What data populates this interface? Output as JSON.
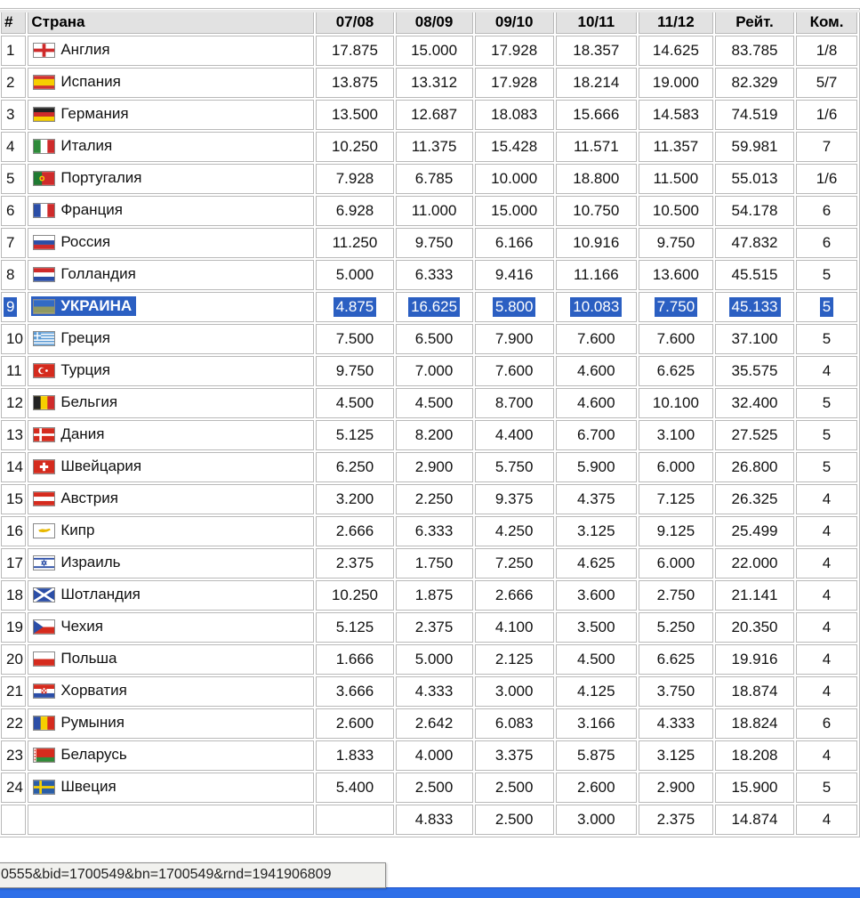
{
  "colors": {
    "sel": "#2b5fc2",
    "bar": "#2e6fe8",
    "header_bg": "#e2e2e2"
  },
  "table": {
    "headers": [
      "#",
      "Страна",
      "07/08",
      "08/09",
      "09/10",
      "10/11",
      "11/12",
      "Рейт.",
      "Ком."
    ],
    "rows": [
      {
        "rank": "1",
        "country": "Англия",
        "flag": "england",
        "values": [
          "17.875",
          "15.000",
          "17.928",
          "18.357",
          "14.625"
        ],
        "rating": "83.785",
        "teams": "1/8",
        "selected": false
      },
      {
        "rank": "2",
        "country": "Испания",
        "flag": "spain",
        "values": [
          "13.875",
          "13.312",
          "17.928",
          "18.214",
          "19.000"
        ],
        "rating": "82.329",
        "teams": "5/7",
        "selected": false
      },
      {
        "rank": "3",
        "country": "Германия",
        "flag": "germany",
        "values": [
          "13.500",
          "12.687",
          "18.083",
          "15.666",
          "14.583"
        ],
        "rating": "74.519",
        "teams": "1/6",
        "selected": false
      },
      {
        "rank": "4",
        "country": "Италия",
        "flag": "italy",
        "values": [
          "10.250",
          "11.375",
          "15.428",
          "11.571",
          "11.357"
        ],
        "rating": "59.981",
        "teams": "7",
        "selected": false
      },
      {
        "rank": "5",
        "country": "Португалия",
        "flag": "portugal",
        "values": [
          "7.928",
          "6.785",
          "10.000",
          "18.800",
          "11.500"
        ],
        "rating": "55.013",
        "teams": "1/6",
        "selected": false
      },
      {
        "rank": "6",
        "country": "Франция",
        "flag": "france",
        "values": [
          "6.928",
          "11.000",
          "15.000",
          "10.750",
          "10.500"
        ],
        "rating": "54.178",
        "teams": "6",
        "selected": false
      },
      {
        "rank": "7",
        "country": "Россия",
        "flag": "russia",
        "values": [
          "11.250",
          "9.750",
          "6.166",
          "10.916",
          "9.750"
        ],
        "rating": "47.832",
        "teams": "6",
        "selected": false
      },
      {
        "rank": "8",
        "country": "Голландия",
        "flag": "netherlands",
        "values": [
          "5.000",
          "6.333",
          "9.416",
          "11.166",
          "13.600"
        ],
        "rating": "45.515",
        "teams": "5",
        "selected": false
      },
      {
        "rank": "9",
        "country": "УКРАИНА",
        "flag": "ukraine",
        "values": [
          "4.875",
          "16.625",
          "5.800",
          "10.083",
          "7.750"
        ],
        "rating": "45.133",
        "teams": "5",
        "selected": true
      },
      {
        "rank": "10",
        "country": "Греция",
        "flag": "greece",
        "values": [
          "7.500",
          "6.500",
          "7.900",
          "7.600",
          "7.600"
        ],
        "rating": "37.100",
        "teams": "5",
        "selected": false
      },
      {
        "rank": "11",
        "country": "Турция",
        "flag": "turkey",
        "values": [
          "9.750",
          "7.000",
          "7.600",
          "4.600",
          "6.625"
        ],
        "rating": "35.575",
        "teams": "4",
        "selected": false
      },
      {
        "rank": "12",
        "country": "Бельгия",
        "flag": "belgium",
        "values": [
          "4.500",
          "4.500",
          "8.700",
          "4.600",
          "10.100"
        ],
        "rating": "32.400",
        "teams": "5",
        "selected": false
      },
      {
        "rank": "13",
        "country": "Дания",
        "flag": "denmark",
        "values": [
          "5.125",
          "8.200",
          "4.400",
          "6.700",
          "3.100"
        ],
        "rating": "27.525",
        "teams": "5",
        "selected": false
      },
      {
        "rank": "14",
        "country": "Швейцария",
        "flag": "switzerland",
        "values": [
          "6.250",
          "2.900",
          "5.750",
          "5.900",
          "6.000"
        ],
        "rating": "26.800",
        "teams": "5",
        "selected": false
      },
      {
        "rank": "15",
        "country": "Австрия",
        "flag": "austria",
        "values": [
          "3.200",
          "2.250",
          "9.375",
          "4.375",
          "7.125"
        ],
        "rating": "26.325",
        "teams": "4",
        "selected": false
      },
      {
        "rank": "16",
        "country": "Кипр",
        "flag": "cyprus",
        "values": [
          "2.666",
          "6.333",
          "4.250",
          "3.125",
          "9.125"
        ],
        "rating": "25.499",
        "teams": "4",
        "selected": false
      },
      {
        "rank": "17",
        "country": "Израиль",
        "flag": "israel",
        "values": [
          "2.375",
          "1.750",
          "7.250",
          "4.625",
          "6.000"
        ],
        "rating": "22.000",
        "teams": "4",
        "selected": false
      },
      {
        "rank": "18",
        "country": "Шотландия",
        "flag": "scotland",
        "values": [
          "10.250",
          "1.875",
          "2.666",
          "3.600",
          "2.750"
        ],
        "rating": "21.141",
        "teams": "4",
        "selected": false
      },
      {
        "rank": "19",
        "country": "Чехия",
        "flag": "czech",
        "values": [
          "5.125",
          "2.375",
          "4.100",
          "3.500",
          "5.250"
        ],
        "rating": "20.350",
        "teams": "4",
        "selected": false
      },
      {
        "rank": "20",
        "country": "Польша",
        "flag": "poland",
        "values": [
          "1.666",
          "5.000",
          "2.125",
          "4.500",
          "6.625"
        ],
        "rating": "19.916",
        "teams": "4",
        "selected": false
      },
      {
        "rank": "21",
        "country": "Хорватия",
        "flag": "croatia",
        "values": [
          "3.666",
          "4.333",
          "3.000",
          "4.125",
          "3.750"
        ],
        "rating": "18.874",
        "teams": "4",
        "selected": false
      },
      {
        "rank": "22",
        "country": "Румыния",
        "flag": "romania",
        "values": [
          "2.600",
          "2.642",
          "6.083",
          "3.166",
          "4.333"
        ],
        "rating": "18.824",
        "teams": "6",
        "selected": false
      },
      {
        "rank": "23",
        "country": "Беларусь",
        "flag": "belarus",
        "values": [
          "1.833",
          "4.000",
          "3.375",
          "5.875",
          "3.125"
        ],
        "rating": "18.208",
        "teams": "4",
        "selected": false
      },
      {
        "rank": "24",
        "country": "Швеция",
        "flag": "sweden",
        "values": [
          "5.400",
          "2.500",
          "2.500",
          "2.600",
          "2.900"
        ],
        "rating": "15.900",
        "teams": "5",
        "selected": false
      },
      {
        "rank": "",
        "country": "",
        "flag": "",
        "values": [
          "",
          "4.833",
          "2.500",
          "3.000",
          "2.375"
        ],
        "rating": "14.874",
        "teams": "4",
        "selected": false
      }
    ]
  },
  "status_tooltip": {
    "text": "0555&bid=1700549&bn=1700549&rnd=1941906809"
  }
}
